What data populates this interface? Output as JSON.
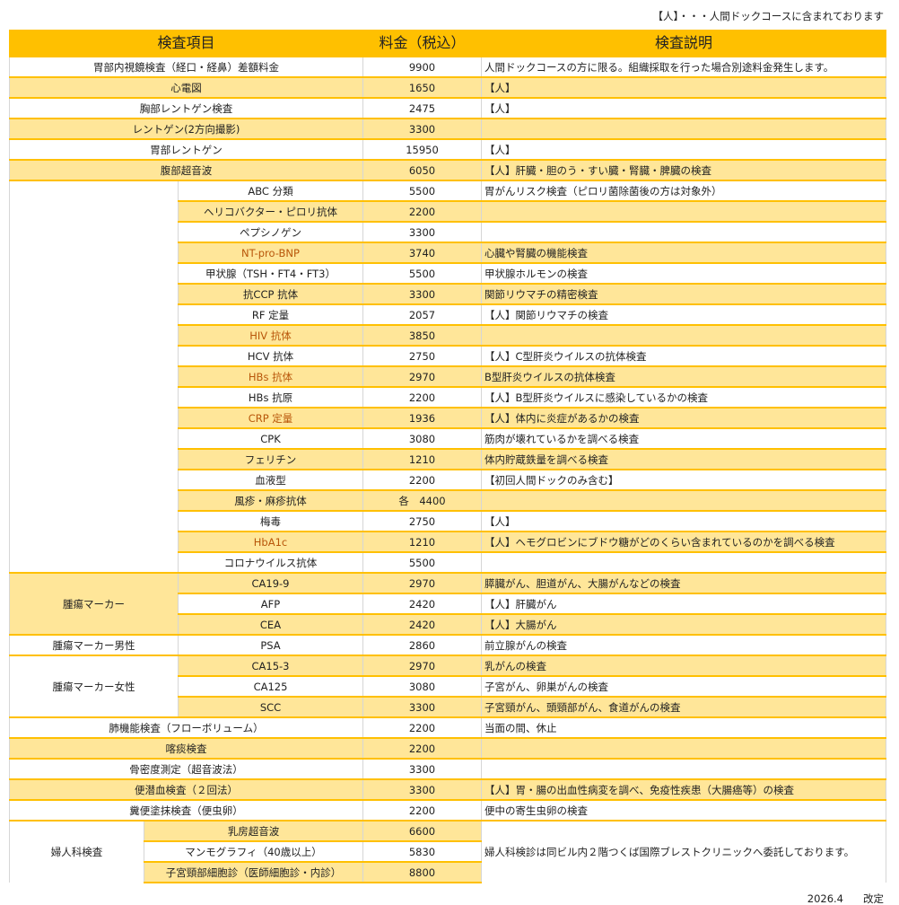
{
  "note": "【人】・・・人間ドックコースに含まれております",
  "header": {
    "item": "検査項目",
    "price": "料金（税込）",
    "desc": "検査説明"
  },
  "colors": {
    "header": "#ffc000",
    "shade": "#ffe699",
    "accent_text": "#b8560a"
  },
  "sections": [
    {
      "kind": "single",
      "name": "胃部内視鏡検査（経口・経鼻）差額料金",
      "price": "9900",
      "desc": "人間ドックコースの方に限る。組織採取を行った場合別途料金発生します。",
      "shade": false
    },
    {
      "kind": "single",
      "name": "心電図",
      "price": "1650",
      "desc": "【人】",
      "shade": true
    },
    {
      "kind": "single",
      "name": "胸部レントゲン検査",
      "price": "2475",
      "desc": "【人】",
      "shade": false
    },
    {
      "kind": "single",
      "name": "レントゲン(2方向撮影)",
      "price": "3300",
      "desc": "",
      "shade": true
    },
    {
      "kind": "single",
      "name": "胃部レントゲン",
      "price": "15950",
      "desc": "【人】",
      "shade": false
    },
    {
      "kind": "single",
      "name": "腹部超音波",
      "price": "6050",
      "desc": "【人】肝臓・胆のう・すい臓・腎臓・脾臓の検査",
      "shade": true
    },
    {
      "kind": "group",
      "label": "",
      "label_shade": false,
      "rows": [
        {
          "name": "ABC 分類",
          "price": "5500",
          "desc": "胃がんリスク検査（ピロリ菌除菌後の方は対象外）",
          "shade": false
        },
        {
          "name": "ヘリコバクター・ピロリ抗体",
          "price": "2200",
          "desc": "",
          "shade": true
        },
        {
          "name": "ペプシノゲン",
          "price": "3300",
          "desc": "",
          "shade": false
        },
        {
          "name": "NT-pro-BNP",
          "price": "3740",
          "desc": "心臓や腎臓の機能検査",
          "shade": true,
          "accent": true
        },
        {
          "name": "甲状腺（TSH・FT4・FT3）",
          "price": "5500",
          "desc": "甲状腺ホルモンの検査",
          "shade": false
        },
        {
          "name": "抗CCP 抗体",
          "price": "3300",
          "desc": "関節リウマチの精密検査",
          "shade": true
        },
        {
          "name": "RF 定量",
          "price": "2057",
          "desc": "【人】関節リウマチの検査",
          "shade": false
        },
        {
          "name": "HIV 抗体",
          "price": "3850",
          "desc": "",
          "shade": true,
          "accent": true
        },
        {
          "name": "HCV 抗体",
          "price": "2750",
          "desc": "【人】C型肝炎ウイルスの抗体検査",
          "shade": false
        },
        {
          "name": "HBs 抗体",
          "price": "2970",
          "desc": "B型肝炎ウイルスの抗体検査",
          "shade": true,
          "accent": true
        },
        {
          "name": "HBs 抗原",
          "price": "2200",
          "desc": "【人】B型肝炎ウイルスに感染しているかの検査",
          "shade": false
        },
        {
          "name": "CRP 定量",
          "price": "1936",
          "desc": "【人】体内に炎症があるかの検査",
          "shade": true,
          "accent": true
        },
        {
          "name": "CPK",
          "price": "3080",
          "desc": "筋肉が壊れているかを調べる検査",
          "shade": false
        },
        {
          "name": "フェリチン",
          "price": "1210",
          "desc": "体内貯蔵鉄量を調べる検査",
          "shade": true
        },
        {
          "name": "血液型",
          "price": "2200",
          "desc": "【初回人間ドックのみ含む】",
          "shade": false
        },
        {
          "name": "風疹・麻疹抗体",
          "price": "各　4400",
          "desc": "",
          "shade": true
        },
        {
          "name": "梅毒",
          "price": "2750",
          "desc": "【人】",
          "shade": false
        },
        {
          "name": "HbA1c",
          "price": "1210",
          "desc": "【人】ヘモグロビンにブドウ糖がどのくらい含まれているのかを調べる検査",
          "shade": true,
          "accent": true
        },
        {
          "name": "コロナウイルス抗体",
          "price": "5500",
          "desc": "",
          "shade": false
        }
      ]
    },
    {
      "kind": "group",
      "label": "腫瘍マーカー",
      "label_shade": true,
      "rows": [
        {
          "name": "CA19-9",
          "price": "2970",
          "desc": "膵臓がん、胆道がん、大腸がんなどの検査",
          "shade": true
        },
        {
          "name": "AFP",
          "price": "2420",
          "desc": "【人】肝臓がん",
          "shade": false
        },
        {
          "name": "CEA",
          "price": "2420",
          "desc": "【人】大腸がん",
          "shade": true
        }
      ]
    },
    {
      "kind": "group",
      "label": "腫瘍マーカー男性",
      "label_shade": false,
      "rows": [
        {
          "name": "PSA",
          "price": "2860",
          "desc": "前立腺がんの検査",
          "shade": false
        }
      ]
    },
    {
      "kind": "group",
      "label": "腫瘍マーカー女性",
      "label_shade": false,
      "rows": [
        {
          "name": "CA15-3",
          "price": "2970",
          "desc": "乳がんの検査",
          "shade": true
        },
        {
          "name": "CA125",
          "price": "3080",
          "desc": "子宮がん、卵巣がんの検査",
          "shade": false
        },
        {
          "name": "SCC",
          "price": "3300",
          "desc": "子宮頸がん、頭頸部がん、食道がんの検査",
          "shade": true
        }
      ]
    },
    {
      "kind": "single",
      "name": "肺機能検査（フローボリューム）",
      "price": "2200",
      "desc": "当面の間、休止",
      "shade": false
    },
    {
      "kind": "single",
      "name": "喀痰検査",
      "price": "2200",
      "desc": "",
      "shade": true
    },
    {
      "kind": "single",
      "name": "骨密度測定（超音波法）",
      "price": "3300",
      "desc": "",
      "shade": false
    },
    {
      "kind": "single",
      "name": "便潜血検査（２回法）",
      "price": "3300",
      "desc": "【人】胃・腸の出血性病変を調べ、免疫性疾患（大腸癌等）の検査",
      "shade": true
    },
    {
      "kind": "single",
      "name": "糞便塗抹検査（便虫卵）",
      "price": "2200",
      "desc": "便中の寄生虫卵の検査",
      "shade": false
    },
    {
      "kind": "gyn",
      "label": "婦人科検査",
      "desc": "婦人科検診は同ビル内２階つくば国際ブレストクリニックへ委託しております。",
      "rows": [
        {
          "name": "乳房超音波",
          "price": "6600",
          "shade": true
        },
        {
          "name": "マンモグラフィ（40歳以上）",
          "price": "5830",
          "shade": false
        },
        {
          "name": "子宮頸部細胞診（医師細胞診・内診）",
          "price": "8800",
          "shade": true
        }
      ]
    }
  ],
  "footer": {
    "date": "2026.4",
    "label": "改定"
  }
}
